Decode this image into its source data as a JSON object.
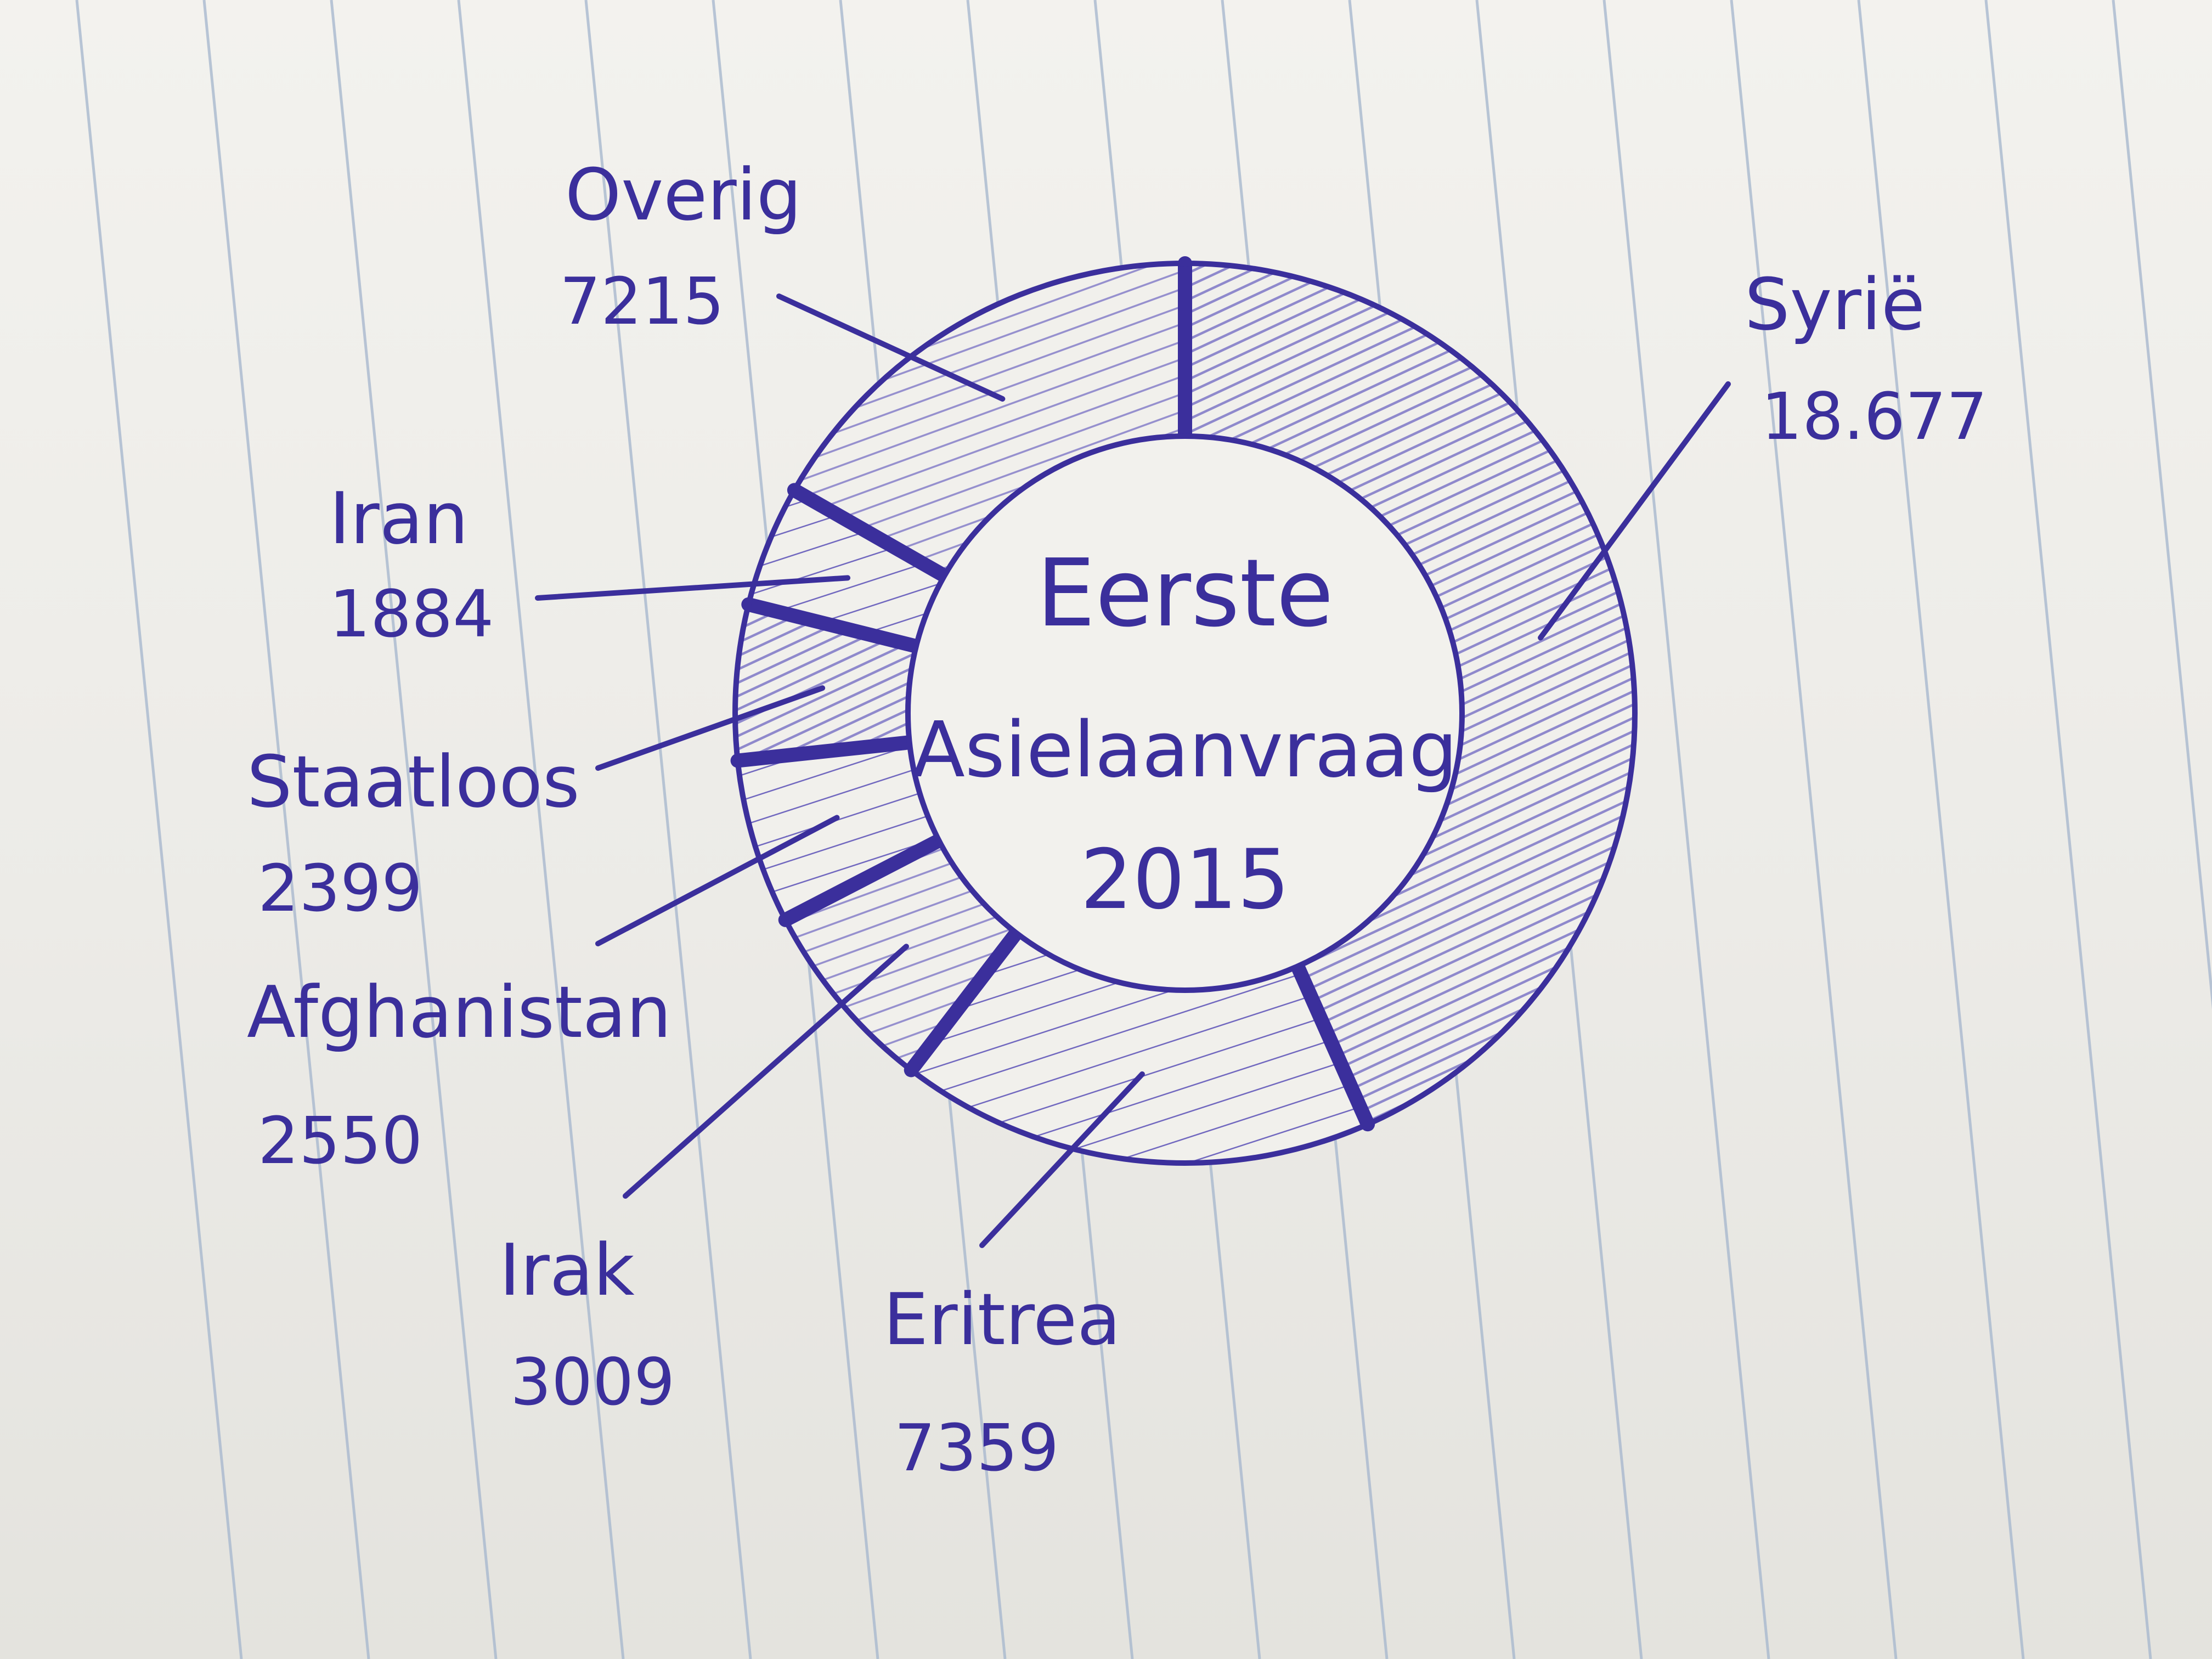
{
  "colors": {
    "ink": "#3b2f9c",
    "ink_light": "#6f66c2",
    "paper": "#f1f0ec",
    "rule_line": "#a9b9cf"
  },
  "chart_data": {
    "type": "pie",
    "style": "donut",
    "center_text": [
      "Eerste",
      "Asielaanvraag",
      "2015"
    ],
    "slices": [
      {
        "label": "Syrië",
        "value_text": "18.677",
        "value": 18677
      },
      {
        "label": "Eritrea",
        "value_text": "7359",
        "value": 7359
      },
      {
        "label": "Irak",
        "value_text": "3009",
        "value": 3009
      },
      {
        "label": "Afghanistan",
        "value_text": "2550",
        "value": 2550
      },
      {
        "label": "Staatloos",
        "value_text": "2399",
        "value": 2399
      },
      {
        "label": "Iran",
        "value_text": "1884",
        "value": 1884
      },
      {
        "label": "Overig",
        "value_text": "7215",
        "value": 7215
      }
    ]
  }
}
